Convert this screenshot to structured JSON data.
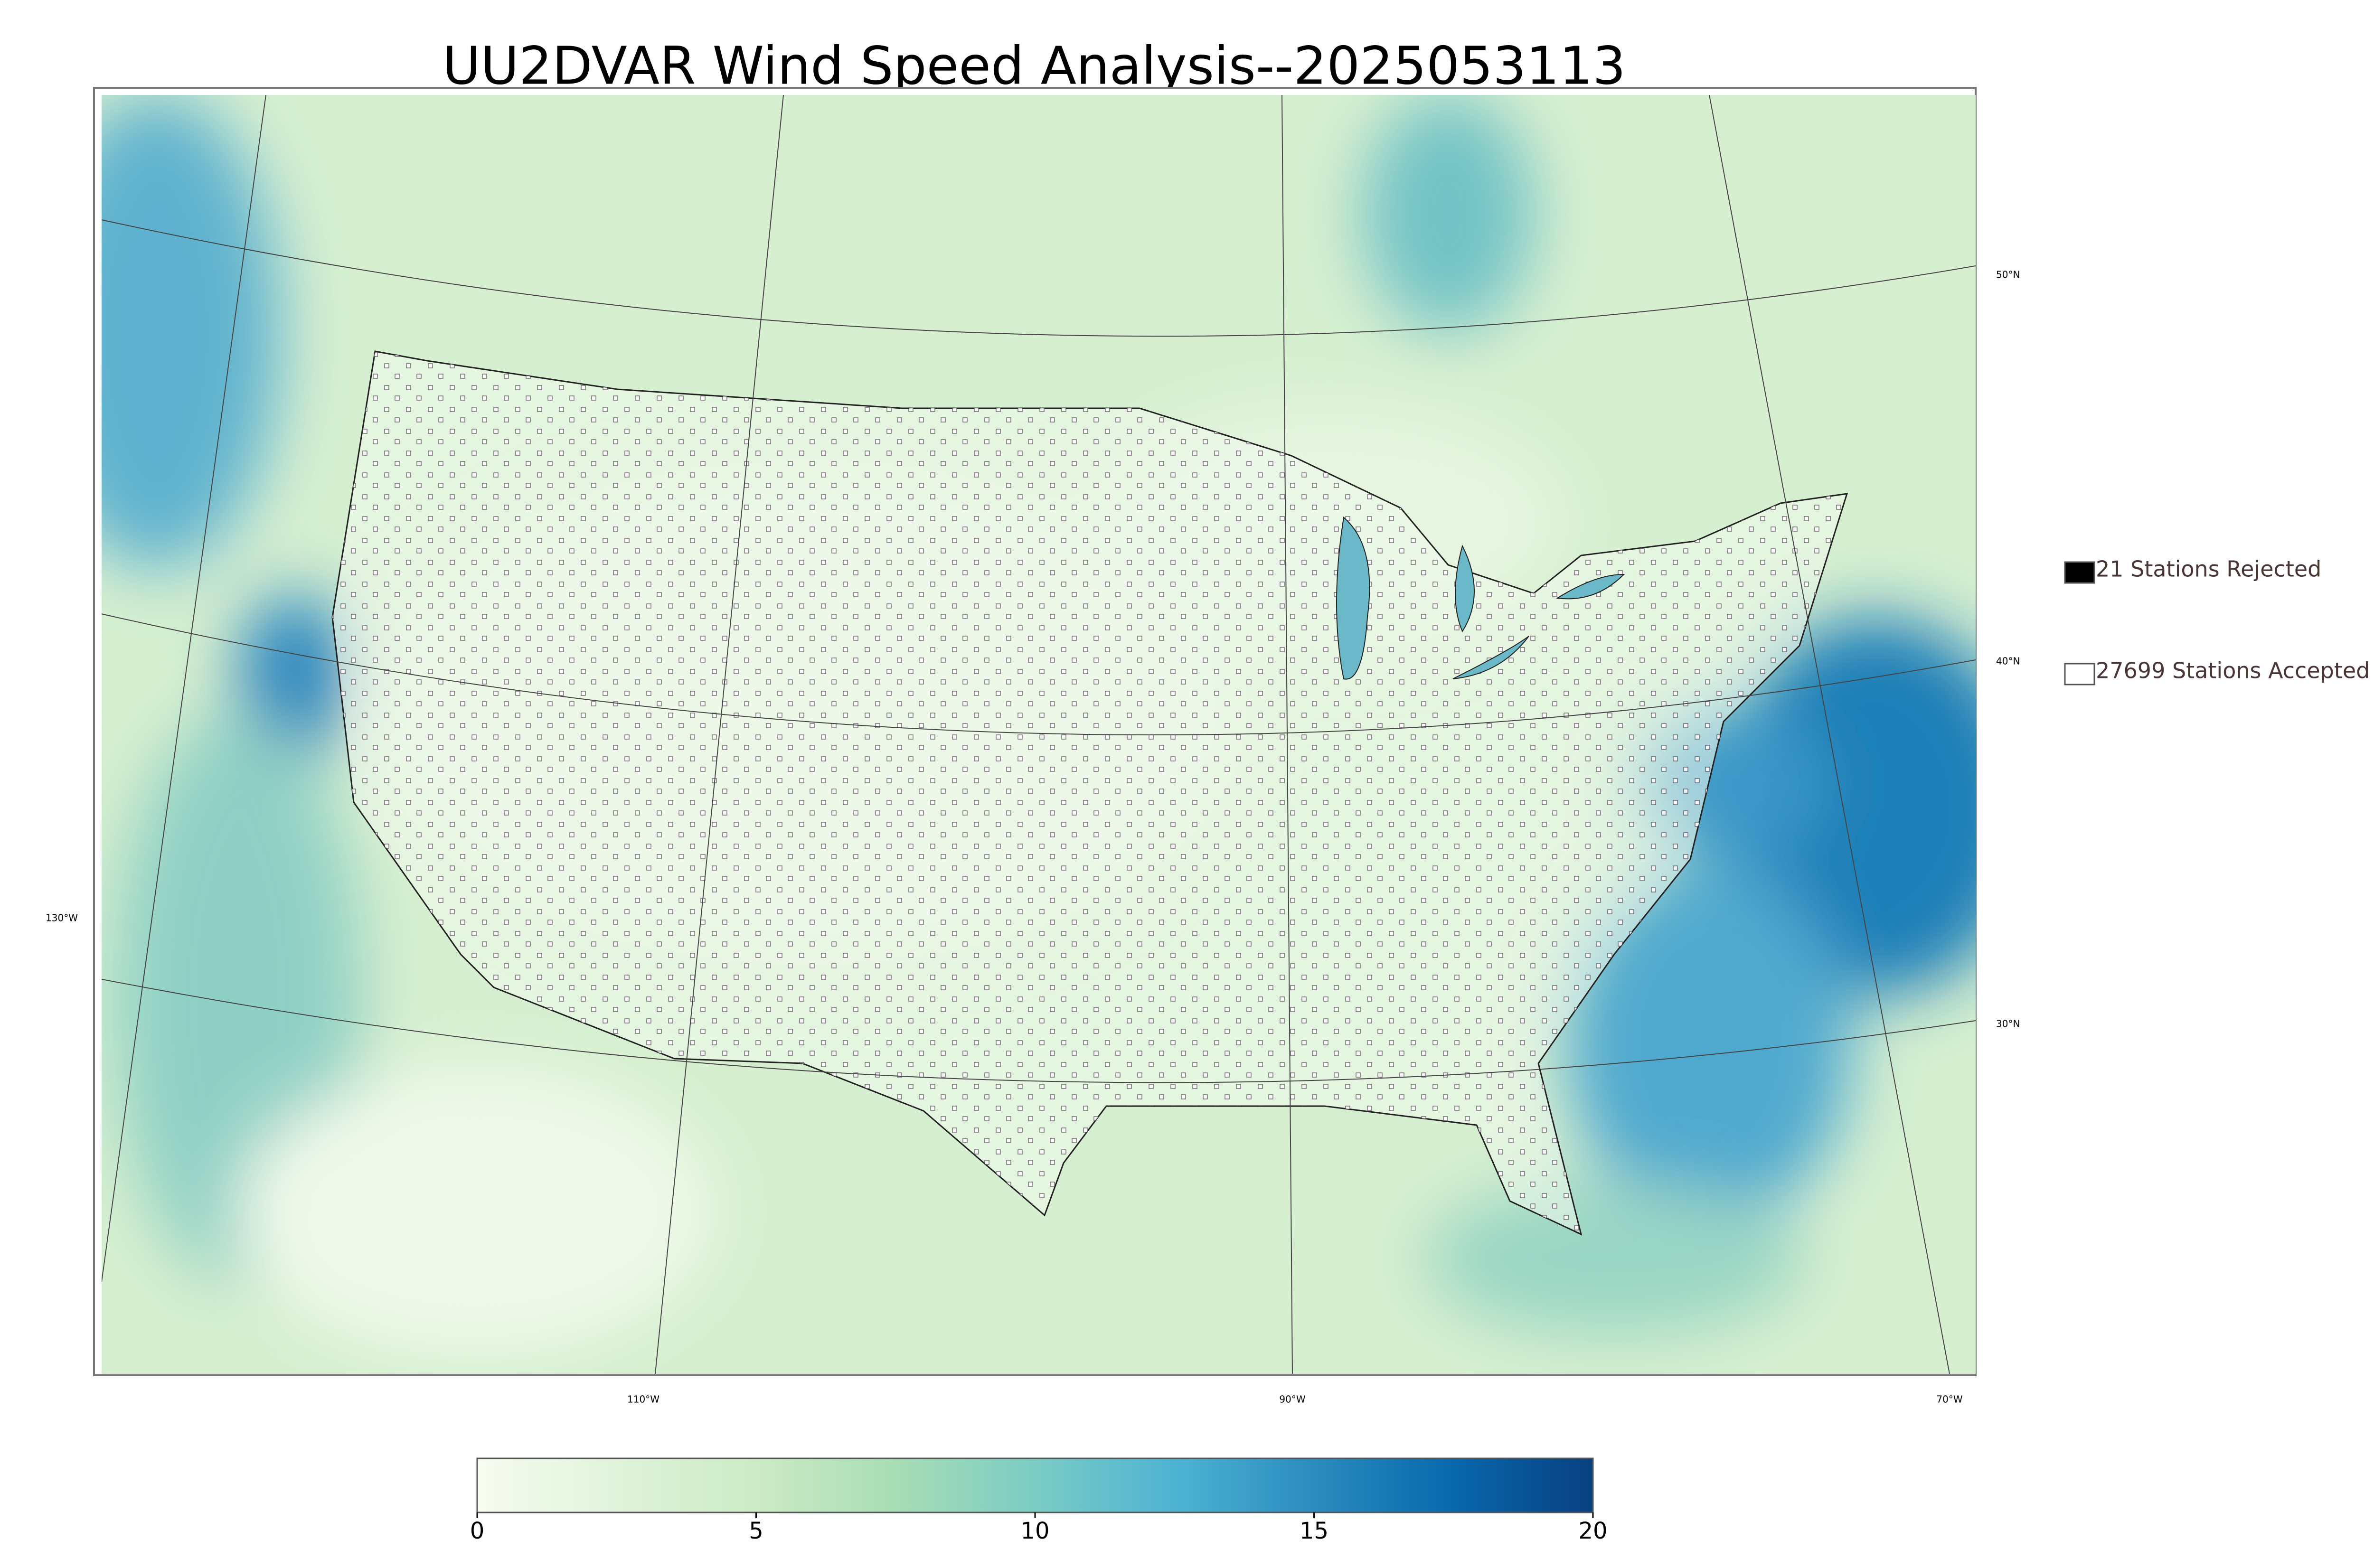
{
  "title": "UU2DVAR Wind Speed Analysis--2025053113",
  "legend": [
    {
      "label": "21 Stations Rejected",
      "fill": "#000000"
    },
    {
      "label": "27699 Stations Accepted",
      "fill": "#ffffff"
    }
  ],
  "graticule_labels": {
    "lat": [
      "50°N",
      "40°N",
      "30°N"
    ],
    "lon": [
      "130°W",
      "110°W",
      "90°W",
      "70°W"
    ]
  },
  "colorbar": {
    "lim": [
      0,
      20
    ],
    "ticks": [
      0,
      5,
      10,
      15,
      20
    ],
    "colors": [
      "#f7fcf0",
      "#e0f3db",
      "#ccebc5",
      "#a8ddb5",
      "#7bccc4",
      "#4eb3d3",
      "#2b8cbe",
      "#0868ac",
      "#084081"
    ]
  }
}
